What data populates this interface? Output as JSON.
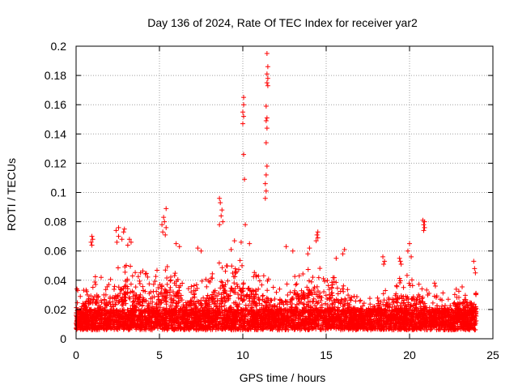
{
  "chart_data": {
    "type": "scatter",
    "title": "Day 136 of 2024, Rate Of TEC Index for receiver yar2",
    "xlabel": "GPS time / hours",
    "ylabel": "ROTI / TECUs",
    "xlim": [
      0,
      25
    ],
    "ylim": [
      0,
      0.2
    ],
    "xticks": [
      0,
      5,
      10,
      15,
      20,
      25
    ],
    "yticks": [
      0,
      0.02,
      0.04,
      0.06,
      0.08,
      0.1,
      0.12,
      0.14,
      0.16,
      0.18,
      0.2
    ],
    "xtick_labels": [
      "0",
      "5",
      "10",
      "15",
      "20",
      "25"
    ],
    "ytick_labels": [
      "0",
      "0.02",
      "0.04",
      "0.06",
      "0.08",
      "0.1",
      "0.12",
      "0.14",
      "0.16",
      "0.18",
      "0.2"
    ],
    "grid": true,
    "marker": "+",
    "marker_color": "#ff0000",
    "series": [
      {
        "name": "ROTI",
        "color": "#ff0000",
        "outliers": [
          [
            10.05,
            0.165
          ],
          [
            10.05,
            0.16
          ],
          [
            10.0,
            0.155
          ],
          [
            10.05,
            0.152
          ],
          [
            10.0,
            0.147
          ],
          [
            10.05,
            0.126
          ],
          [
            10.1,
            0.109
          ],
          [
            10.15,
            0.078
          ],
          [
            11.45,
            0.195
          ],
          [
            11.5,
            0.186
          ],
          [
            11.45,
            0.181
          ],
          [
            11.5,
            0.178
          ],
          [
            11.45,
            0.175
          ],
          [
            11.5,
            0.173
          ],
          [
            11.4,
            0.159
          ],
          [
            11.45,
            0.151
          ],
          [
            11.4,
            0.149
          ],
          [
            11.45,
            0.144
          ],
          [
            11.4,
            0.134
          ],
          [
            11.45,
            0.118
          ],
          [
            11.4,
            0.112
          ],
          [
            11.35,
            0.106
          ],
          [
            11.4,
            0.101
          ],
          [
            11.35,
            0.096
          ],
          [
            8.6,
            0.096
          ],
          [
            8.65,
            0.093
          ],
          [
            8.75,
            0.088
          ],
          [
            8.7,
            0.084
          ],
          [
            8.8,
            0.08
          ],
          [
            8.6,
            0.078
          ],
          [
            5.4,
            0.089
          ],
          [
            5.25,
            0.083
          ],
          [
            5.3,
            0.08
          ],
          [
            5.15,
            0.078
          ],
          [
            5.4,
            0.076
          ],
          [
            5.2,
            0.073
          ],
          [
            5.35,
            0.071
          ],
          [
            20.8,
            0.081
          ],
          [
            20.9,
            0.08
          ],
          [
            20.85,
            0.078
          ],
          [
            20.9,
            0.076
          ],
          [
            20.85,
            0.074
          ],
          [
            2.55,
            0.076
          ],
          [
            2.4,
            0.074
          ],
          [
            2.9,
            0.075
          ],
          [
            2.85,
            0.073
          ],
          [
            2.55,
            0.07
          ],
          [
            2.75,
            0.068
          ],
          [
            2.45,
            0.066
          ],
          [
            14.5,
            0.073
          ],
          [
            14.45,
            0.071
          ],
          [
            14.5,
            0.069
          ],
          [
            14.4,
            0.067
          ],
          [
            0.95,
            0.07
          ],
          [
            1.0,
            0.068
          ],
          [
            0.9,
            0.066
          ],
          [
            0.95,
            0.064
          ],
          [
            3.2,
            0.068
          ],
          [
            3.3,
            0.066
          ],
          [
            3.1,
            0.064
          ],
          [
            9.9,
            0.066
          ],
          [
            9.5,
            0.067
          ],
          [
            10.4,
            0.065
          ],
          [
            9.3,
            0.061
          ],
          [
            6.0,
            0.065
          ],
          [
            6.2,
            0.063
          ],
          [
            7.3,
            0.062
          ],
          [
            7.5,
            0.06
          ],
          [
            12.6,
            0.063
          ],
          [
            13.0,
            0.06
          ],
          [
            14.0,
            0.062
          ],
          [
            13.9,
            0.058
          ],
          [
            16.1,
            0.061
          ],
          [
            16.0,
            0.058
          ],
          [
            15.6,
            0.055
          ],
          [
            20.0,
            0.065
          ],
          [
            19.9,
            0.06
          ],
          [
            20.1,
            0.056
          ],
          [
            18.4,
            0.056
          ],
          [
            18.5,
            0.053
          ],
          [
            18.45,
            0.051
          ],
          [
            19.4,
            0.055
          ],
          [
            19.45,
            0.053
          ],
          [
            19.5,
            0.051
          ],
          [
            23.85,
            0.053
          ],
          [
            23.9,
            0.048
          ],
          [
            23.95,
            0.045
          ],
          [
            21.5,
            0.038
          ],
          [
            21.55,
            0.036
          ],
          [
            0.05,
            0.034
          ],
          [
            0.1,
            0.033
          ]
        ],
        "density_profile": [
          [
            0.0,
            0.02
          ],
          [
            0.5,
            0.028
          ],
          [
            1.0,
            0.04
          ],
          [
            1.5,
            0.036
          ],
          [
            2.0,
            0.034
          ],
          [
            2.5,
            0.046
          ],
          [
            3.0,
            0.048
          ],
          [
            3.5,
            0.04
          ],
          [
            4.0,
            0.042
          ],
          [
            4.5,
            0.04
          ],
          [
            5.0,
            0.046
          ],
          [
            5.5,
            0.044
          ],
          [
            6.0,
            0.04
          ],
          [
            6.5,
            0.03
          ],
          [
            7.0,
            0.03
          ],
          [
            7.5,
            0.034
          ],
          [
            8.0,
            0.036
          ],
          [
            8.5,
            0.046
          ],
          [
            9.0,
            0.048
          ],
          [
            9.5,
            0.05
          ],
          [
            10.0,
            0.05
          ],
          [
            10.5,
            0.044
          ],
          [
            11.0,
            0.04
          ],
          [
            11.5,
            0.036
          ],
          [
            12.0,
            0.032
          ],
          [
            12.5,
            0.034
          ],
          [
            13.0,
            0.036
          ],
          [
            13.5,
            0.04
          ],
          [
            14.0,
            0.044
          ],
          [
            14.5,
            0.046
          ],
          [
            15.0,
            0.04
          ],
          [
            15.5,
            0.036
          ],
          [
            16.0,
            0.034
          ],
          [
            16.5,
            0.026
          ],
          [
            17.0,
            0.022
          ],
          [
            17.5,
            0.022
          ],
          [
            18.0,
            0.026
          ],
          [
            18.5,
            0.03
          ],
          [
            19.0,
            0.034
          ],
          [
            19.5,
            0.036
          ],
          [
            20.0,
            0.038
          ],
          [
            20.5,
            0.032
          ],
          [
            21.0,
            0.028
          ],
          [
            21.5,
            0.026
          ],
          [
            22.0,
            0.026
          ],
          [
            22.5,
            0.028
          ],
          [
            23.0,
            0.03
          ],
          [
            23.5,
            0.03
          ],
          [
            24.0,
            0.028
          ]
        ],
        "x_range": [
          0.0,
          24.0
        ],
        "baseline": 0.006
      }
    ]
  }
}
